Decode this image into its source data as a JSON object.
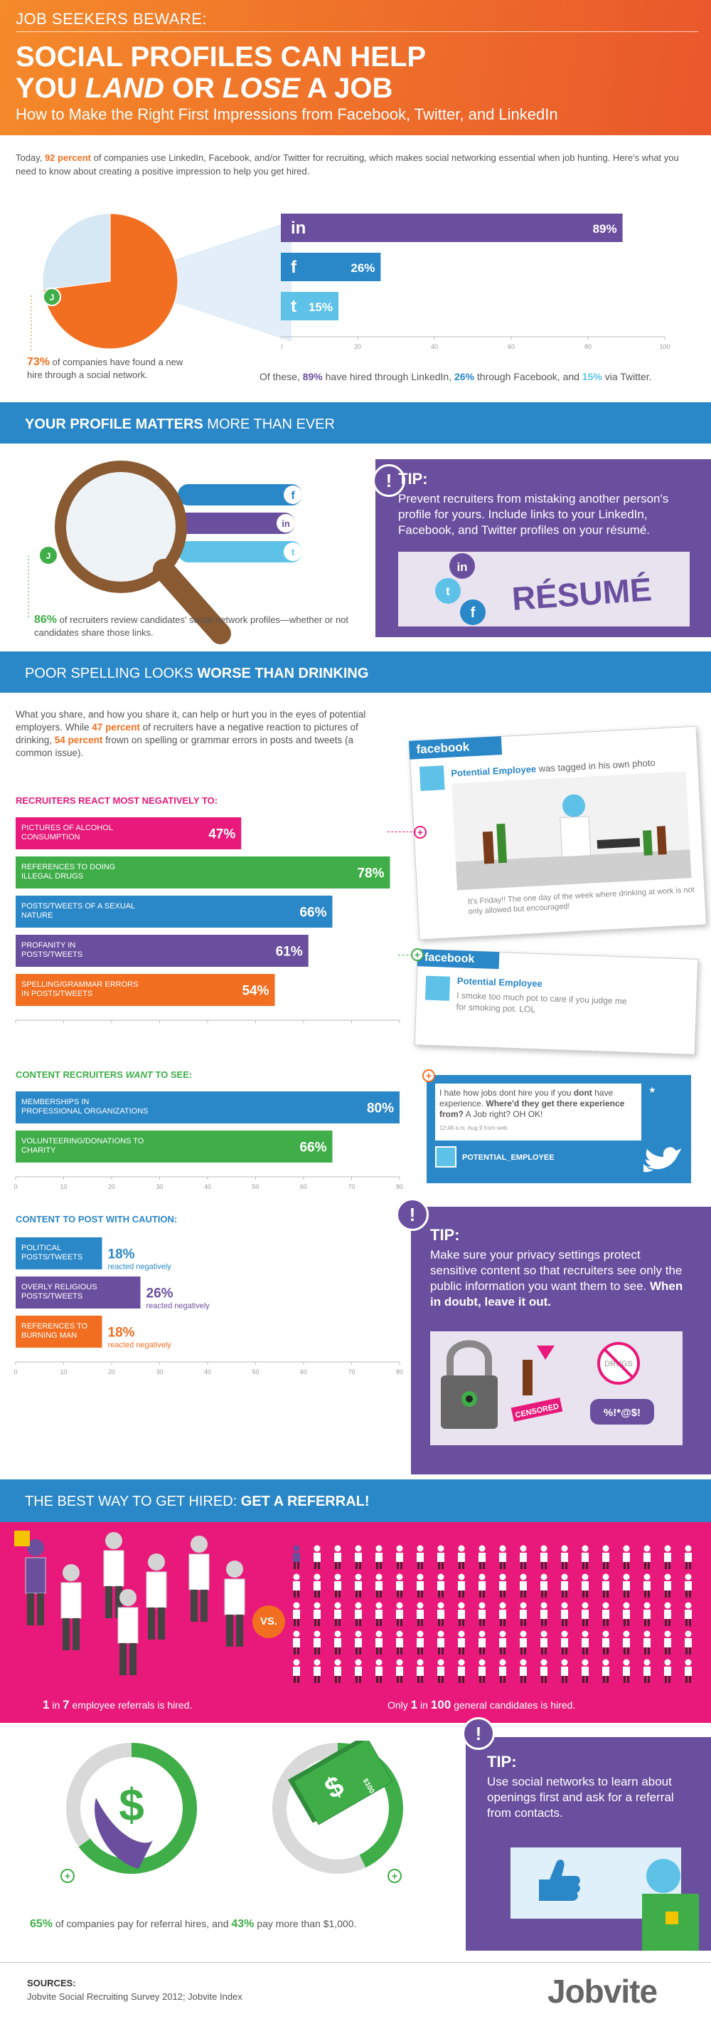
{
  "header": {
    "kicker": "JOB SEEKERS BEWARE:",
    "title_1": "SOCIAL PROFILES CAN HELP",
    "title_2a": "YOU ",
    "title_2b": "LAND",
    "title_2c": " OR ",
    "title_2d": "LOSE",
    "title_2e": " A JOB",
    "subtitle": "How to Make the Right First Impressions from Facebook, Twitter, and LinkedIn"
  },
  "intro": {
    "pre": "Today, ",
    "highlight": "92 percent",
    "post": " of companies use LinkedIn, Facebook, and/or Twitter for recruiting, which makes social networking essential when job hunting. Here's what you need to know about creating a positive impression to help you get hired."
  },
  "pie_note": {
    "pct": "73%",
    "text": " of companies have found a new hire through a social network."
  },
  "section1_note": {
    "pre": "Of these, ",
    "li": "89%",
    "mid1": " have hired through LinkedIn, ",
    "fb": "26%",
    "mid2": " through Facebook, and ",
    "tw": "15%",
    "post": " via Twitter."
  },
  "section2": {
    "bold": "YOUR PROFILE MATTERS",
    "rest": " MORE THAN EVER"
  },
  "tip1": {
    "heading": "TIP:",
    "text": "Prevent recruiters from mistaking another person's profile for yours. Include links to your LinkedIn, Facebook, and Twitter profiles on your résumé.",
    "resume": "RÉSUMÉ"
  },
  "mag_note": {
    "pct": "86%",
    "text": " of recruiters review candidates' social network profiles—whether or not candidates share those links."
  },
  "section3": {
    "rest": "POOR SPELLING LOOKS ",
    "bold": "WORSE THAN DRINKING"
  },
  "drink_intro": {
    "a": "What you share, and how you share it, can help or hurt you in the eyes of potential employers. While ",
    "b": "47 percent",
    "c": " of recruiters have a negative reaction to pictures of drinking, ",
    "d": "54 percent",
    "e": " frown on spelling or grammar errors in posts and tweets (a common issue)."
  },
  "neg_title": "RECRUITERS REACT MOST NEGATIVELY TO:",
  "want_title_a": "CONTENT RECRUITERS ",
  "want_title_b": "WANT",
  "want_title_c": " TO SEE:",
  "caution_title": "CONTENT TO POST WITH CAUTION:",
  "fb_post1": {
    "brand": "facebook",
    "name": "Potential Employee",
    "action": " was tagged in his own photo",
    "text": "It's Friday!! The one day of the week where drinking at work is not only allowed but encouraged!"
  },
  "fb_post2": {
    "brand": "facebook",
    "name": "Potential Employee",
    "text": "I smoke too much pot to care if you judge me for smoking pot. LOL"
  },
  "tweet": {
    "a": "I hate how jobs dont hire you if you ",
    "b": "dont",
    "c": " have experience. ",
    "d": "Where'd they get there experience from?",
    "e": " A Job right? OH OK!",
    "meta": "12:48 a.m. Aug 9 from web",
    "handle": "POTENTIAL_EMPLOYEE"
  },
  "tip2": {
    "heading": "TIP:",
    "text": "Make sure your privacy settings protect sensitive content so that recruiters see only the public information you want them to see. ",
    "bold": "When in doubt, leave it out.",
    "censored": "CENSORED",
    "drugs": "DRUGS",
    "curse": "%!*@$!"
  },
  "section4": {
    "rest": "THE BEST WAY TO GET HIRED: ",
    "bold": "GET A REFERRAL!"
  },
  "vs": "VS.",
  "ref_note_a": {
    "n": "1",
    "mid": " in ",
    "m": "7",
    "post": " employee referrals is hired."
  },
  "ref_note_b": {
    "pre": "Only ",
    "n": "1",
    "mid": " in ",
    "m": "100",
    "post": " general candidates is hired."
  },
  "pay_note": {
    "a": "65%",
    "b": " of companies pay for referral hires, and ",
    "c": "43%",
    "d": " pay more than $1,000."
  },
  "money_label": "$100",
  "tip3": {
    "heading": "TIP:",
    "text": "Use social networks to learn about openings first and ask for a referral from contacts."
  },
  "sources": {
    "label": "SOURCES:",
    "text": "Jobvite Social Recruiting Survey 2012; Jobvite Index"
  },
  "brand": "Jobvite",
  "colors": {
    "orange": "#f26f21",
    "blue": "#2a87c8",
    "purple": "#6a4f9e",
    "green": "#3fae49",
    "pink": "#e8197a",
    "cyan": "#5ec2e8"
  },
  "chart_data": [
    {
      "type": "pie",
      "values": [
        73,
        27
      ],
      "labels": [
        "73%",
        ""
      ]
    },
    {
      "type": "bar",
      "orientation": "horizontal",
      "categories": [
        "in",
        "f",
        "t"
      ],
      "values": [
        89,
        26,
        15
      ],
      "value_labels": [
        "89%",
        "26%",
        "15%"
      ],
      "xlim": [
        0,
        100
      ],
      "ticks": [
        0,
        20,
        40,
        60,
        80,
        100
      ],
      "colors": [
        "#6a4f9e",
        "#2a87c8",
        "#5ec2e8"
      ]
    },
    {
      "type": "bar",
      "orientation": "horizontal",
      "title": "RECRUITERS REACT MOST NEGATIVELY TO:",
      "categories": [
        "PICTURES OF ALCOHOL CONSUMPTION",
        "REFERENCES TO DOING ILLEGAL DRUGS",
        "POSTS/TWEETS OF A SEXUAL NATURE",
        "PROFANITY IN POSTS/TWEETS",
        "SPELLING/GRAMMAR ERRORS IN POSTS/TWEETS"
      ],
      "values": [
        47,
        78,
        66,
        61,
        54
      ],
      "value_labels": [
        "47%",
        "78%",
        "66%",
        "61%",
        "54%"
      ],
      "xlim": [
        0,
        80
      ],
      "ticks": [
        0,
        10,
        20,
        30,
        40,
        50,
        60,
        70,
        80
      ],
      "colors": [
        "#e8197a",
        "#3fae49",
        "#2a87c8",
        "#6a4f9e",
        "#f26f21"
      ]
    },
    {
      "type": "bar",
      "orientation": "horizontal",
      "categories": [
        "MEMBERSHIPS IN PROFESSIONAL ORGANIZATIONS",
        "VOLUNTEERING/DONATIONS TO CHARITY"
      ],
      "values": [
        80,
        66
      ],
      "value_labels": [
        "80%",
        "66%"
      ],
      "xlim": [
        0,
        80
      ],
      "ticks": [
        0,
        10,
        20,
        30,
        40,
        50,
        60,
        70,
        80
      ],
      "colors": [
        "#2a87c8",
        "#3fae49"
      ]
    },
    {
      "type": "bar",
      "orientation": "horizontal",
      "title": "CONTENT TO POST WITH CAUTION:",
      "categories": [
        "POLITICAL POSTS/TWEETS",
        "OVERLY RELIGIOUS POSTS/TWEETS",
        "REFERENCES TO BURNING MAN"
      ],
      "values": [
        18,
        26,
        18
      ],
      "value_labels": [
        "18%",
        "26%",
        "18%"
      ],
      "annotation": "reacted negatively",
      "xlim": [
        0,
        80
      ],
      "ticks": [
        0,
        10,
        20,
        30,
        40,
        50,
        60,
        70,
        80
      ],
      "colors": [
        "#2a87c8",
        "#6a4f9e",
        "#f26f21"
      ]
    },
    {
      "type": "pie",
      "values": [
        65,
        35
      ],
      "labels": [
        "65%",
        ""
      ]
    },
    {
      "type": "pie",
      "values": [
        43,
        57
      ],
      "labels": [
        "43%",
        ""
      ]
    }
  ]
}
